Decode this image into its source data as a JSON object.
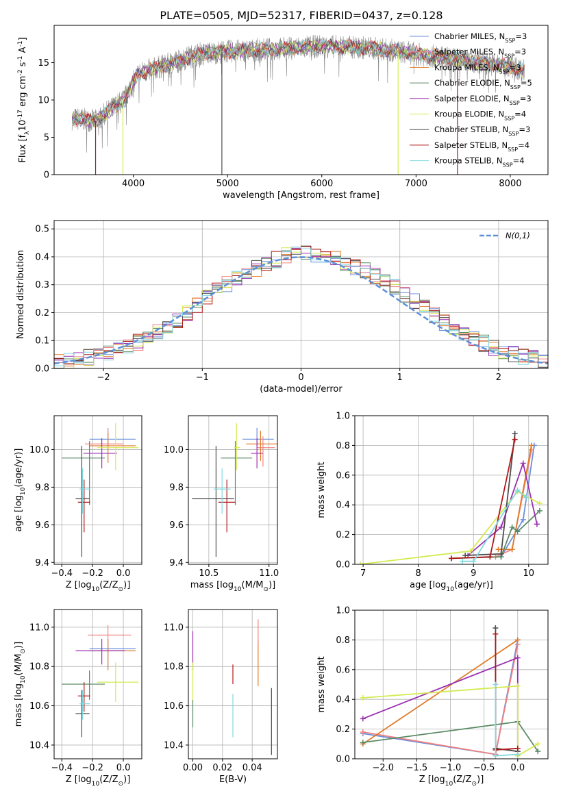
{
  "figure": {
    "title": "PLATE=0505, MJD=52317, FIBERID=0437, z=0.128"
  },
  "colors": {
    "chabrier_miles": "#6a8fdc",
    "salpeter_miles": "#f08080",
    "kroupa_miles": "#e07b28",
    "chabrier_elodie": "#5a8a64",
    "salpeter_elodie": "#9a2fb0",
    "kroupa_elodie": "#d4ea50",
    "chabrier_stelib": "#4d4d4d",
    "salpeter_stelib": "#b01818",
    "kroupa_stelib": "#80d8e0",
    "pink_point": "#e080c0",
    "normal": "#5b8fd8"
  },
  "legend_spectrum": [
    "Chabrier MILES, N$_{SSP}$=3",
    "Salpeter MILES, N$_{SSP}$=3",
    "Kroupa MILES, N$_{SSP}$=3",
    "Chabrier ELODIE, N$_{SSP}$=5",
    "Salpeter ELODIE, N$_{SSP}$=3",
    "Kroupa ELODIE, N$_{SSP}$=4",
    "Chabrier STELIB, N$_{SSP}$=3",
    "Salpeter STELIB, N$_{SSP}$=4",
    "Kroupa STELIB, N$_{SSP}$=4"
  ],
  "chart_data": [
    {
      "id": "spectrum",
      "type": "line",
      "xlabel": "wavelength [Angstrom, rest frame]",
      "ylabel": "Flux [f$_\\lambda$10$^{-17}$ erg cm$^{-2}$ s$^{-1}$ A$^{-1}$]",
      "xlim": [
        3160,
        8400
      ],
      "ylim": [
        0,
        20
      ],
      "xticks": [
        4000,
        5000,
        6000,
        7000,
        8000
      ],
      "yticks": [
        0,
        5,
        10,
        15
      ],
      "observed_continuum": {
        "x": [
          3350,
          3600,
          3900,
          4050,
          4300,
          4700,
          5000,
          5500,
          6000,
          6500,
          7000,
          7500,
          8000,
          8150
        ],
        "y": [
          7.5,
          7.2,
          10.0,
          13.5,
          14.5,
          16.2,
          16.5,
          16.8,
          17.2,
          17.0,
          16.2,
          15.3,
          14.5,
          14.0
        ]
      },
      "dropouts": [
        {
          "x": 3600,
          "y": 0,
          "series": "Salpeter STELIB"
        },
        {
          "x": 3890,
          "y": 0,
          "series": "Kroupa ELODIE"
        },
        {
          "x": 4940,
          "y": 0,
          "series": "Chabrier STELIB"
        },
        {
          "x": 6810,
          "y": 0,
          "series": "Kroupa ELODIE"
        },
        {
          "x": 7440,
          "y": 0,
          "series": "Salpeter STELIB"
        }
      ]
    },
    {
      "id": "residual_histogram",
      "type": "bar",
      "xlabel": "(data-model)/error",
      "ylabel": "Normed distribution",
      "xlim": [
        -2.5,
        2.5
      ],
      "ylim": [
        0,
        0.53
      ],
      "xticks": [
        -2,
        -1,
        0,
        1,
        2
      ],
      "yticks": [
        0.0,
        0.1,
        0.2,
        0.3,
        0.4,
        0.5
      ],
      "reference_curve": "$\\mathcal{N}(0,1)$",
      "bin_edges": [
        -2.5,
        -2.4,
        -2.3,
        -2.2,
        -2.1,
        -2.0,
        -1.9,
        -1.8,
        -1.7,
        -1.6,
        -1.5,
        -1.4,
        -1.3,
        -1.2,
        -1.1,
        -1.0,
        -0.9,
        -0.8,
        -0.7,
        -0.6,
        -0.5,
        -0.4,
        -0.3,
        -0.2,
        -0.1,
        0.0,
        0.1,
        0.2,
        0.3,
        0.4,
        0.5,
        0.6,
        0.7,
        0.8,
        0.9,
        1.0,
        1.1,
        1.2,
        1.3,
        1.4,
        1.5,
        1.6,
        1.7,
        1.8,
        1.9,
        2.0,
        2.1,
        2.2,
        2.3,
        2.4,
        2.5
      ],
      "mean_density": [
        0.025,
        0.03,
        0.035,
        0.04,
        0.045,
        0.055,
        0.065,
        0.08,
        0.095,
        0.11,
        0.13,
        0.15,
        0.175,
        0.2,
        0.23,
        0.255,
        0.28,
        0.3,
        0.32,
        0.34,
        0.36,
        0.38,
        0.39,
        0.405,
        0.41,
        0.42,
        0.41,
        0.4,
        0.39,
        0.38,
        0.365,
        0.35,
        0.33,
        0.31,
        0.29,
        0.265,
        0.24,
        0.215,
        0.19,
        0.165,
        0.145,
        0.125,
        0.105,
        0.09,
        0.075,
        0.06,
        0.05,
        0.04,
        0.035,
        0.03
      ]
    },
    {
      "id": "age_vs_Z",
      "type": "scatter",
      "xlabel": "Z [log$_{10}$(Z/Z$_\\odot$)]",
      "ylabel": "age  [log$_{10}$(age/yr)]",
      "xlim": [
        -0.45,
        0.12
      ],
      "ylim": [
        9.39,
        10.18
      ],
      "xticks": [
        -0.4,
        -0.2,
        0.0
      ],
      "yticks": [
        9.4,
        9.6,
        9.8,
        10.0
      ],
      "points": [
        {
          "series": "Chabrier MILES",
          "x": -0.1,
          "y": 10.055,
          "xerr": [
            0.12,
            0.18
          ],
          "yerr": [
            0.04,
            0.06
          ]
        },
        {
          "series": "Salpeter MILES",
          "x": -0.1,
          "y": 10.03,
          "xerr": [
            0.15,
            0.1
          ],
          "yerr": [
            0.1,
            0.08
          ]
        },
        {
          "series": "Kroupa MILES",
          "x": -0.1,
          "y": 10.02,
          "xerr": [
            0.12,
            0.18
          ],
          "yerr": [
            0.09,
            0.07
          ]
        },
        {
          "series": "Chabrier ELODIE",
          "x": -0.22,
          "y": 9.955,
          "xerr": [
            0.18,
            0.1
          ],
          "yerr": [
            0.25,
            0.09
          ]
        },
        {
          "series": "Salpeter ELODIE",
          "x": -0.14,
          "y": 9.98,
          "xerr": [
            0.12,
            0.1
          ],
          "yerr": [
            0.08,
            0.08
          ]
        },
        {
          "series": "Kroupa ELODIE",
          "x": -0.05,
          "y": 10.01,
          "xerr": [
            0.12,
            0.15
          ],
          "yerr": [
            0.12,
            0.13
          ]
        },
        {
          "series": "Chabrier STELIB",
          "x": -0.27,
          "y": 9.74,
          "xerr": [
            0.04,
            0.05
          ],
          "yerr": [
            0.31,
            0.28
          ]
        },
        {
          "series": "Salpeter STELIB",
          "x": -0.255,
          "y": 9.72,
          "xerr": [
            0.04,
            0.04
          ],
          "yerr": [
            0.16,
            0.12
          ]
        },
        {
          "series": "Kroupa STELIB",
          "x": -0.265,
          "y": 9.79,
          "xerr": [
            0.02,
            0.05
          ],
          "yerr": [
            0.13,
            0.11
          ]
        }
      ]
    },
    {
      "id": "age_vs_mass",
      "type": "scatter",
      "xlabel": "mass [log$_{10}$(M/M$_\\odot$)]",
      "ylabel": "",
      "xlim": [
        10.33,
        11.07
      ],
      "ylim": [
        9.39,
        10.18
      ],
      "xticks": [
        10.5,
        11.0
      ],
      "yticks": [
        9.4,
        9.6,
        9.8,
        10.0
      ],
      "points": [
        {
          "series": "Chabrier MILES",
          "x": 10.9,
          "y": 10.055,
          "xerr": [
            0.12,
            0.14
          ],
          "yerr": [
            0.04,
            0.06
          ]
        },
        {
          "series": "Salpeter MILES",
          "x": 10.95,
          "y": 10.01,
          "xerr": [
            0.05,
            0.1
          ],
          "yerr": [
            0.1,
            0.06
          ]
        },
        {
          "series": "Kroupa MILES",
          "x": 10.93,
          "y": 10.03,
          "xerr": [
            0.12,
            0.14
          ],
          "yerr": [
            0.09,
            0.07
          ]
        },
        {
          "series": "Chabrier ELODIE",
          "x": 10.72,
          "y": 9.955,
          "xerr": [
            0.12,
            0.14
          ],
          "yerr": [
            0.25,
            0.09
          ]
        },
        {
          "series": "Salpeter ELODIE",
          "x": 10.9,
          "y": 9.98,
          "xerr": [
            0.05,
            0.05
          ],
          "yerr": [
            0.08,
            0.08
          ]
        },
        {
          "series": "Kroupa ELODIE",
          "x": 10.73,
          "y": 10.01,
          "xerr": [
            0.02,
            0.03
          ],
          "yerr": [
            0.12,
            0.13
          ]
        },
        {
          "series": "Chabrier STELIB",
          "x": 10.56,
          "y": 9.74,
          "xerr": [
            0.2,
            0.15
          ],
          "yerr": [
            0.31,
            0.28
          ]
        },
        {
          "series": "Salpeter STELIB",
          "x": 10.65,
          "y": 9.72,
          "xerr": [
            0.07,
            0.07
          ],
          "yerr": [
            0.16,
            0.12
          ]
        },
        {
          "series": "Kroupa STELIB",
          "x": 10.61,
          "y": 9.79,
          "xerr": [
            0.07,
            0.07
          ],
          "yerr": [
            0.13,
            0.11
          ]
        }
      ]
    },
    {
      "id": "mass_weight_vs_age",
      "type": "line",
      "xlabel": "age  [log$_{10}$(age/yr)]",
      "ylabel": "mass weight",
      "xlim": [
        6.85,
        10.35
      ],
      "ylim": [
        0,
        1
      ],
      "xticks": [
        7,
        8,
        9,
        10
      ],
      "yticks": [
        0.0,
        0.2,
        0.4,
        0.6,
        0.8,
        1.0
      ],
      "series": [
        {
          "name": "Chabrier MILES",
          "x": [
            9.5,
            9.9,
            10.1
          ],
          "y": [
            0.05,
            0.3,
            0.8
          ]
        },
        {
          "name": "Salpeter MILES",
          "x": [
            9.4,
            9.7,
            10.05
          ],
          "y": [
            0.05,
            0.1,
            0.77
          ]
        },
        {
          "name": "Kroupa MILES",
          "x": [
            9.45,
            9.7,
            10.05
          ],
          "y": [
            0.1,
            0.1,
            0.8
          ]
        },
        {
          "name": "Chabrier ELODIE",
          "x": [
            8.6,
            9.5,
            9.7,
            9.8,
            10.2
          ],
          "y": [
            0.04,
            0.05,
            0.25,
            0.22,
            0.36
          ]
        },
        {
          "name": "Salpeter ELODIE",
          "x": [
            8.9,
            9.5,
            9.9,
            10.15
          ],
          "y": [
            0.06,
            0.25,
            0.68,
            0.27
          ]
        },
        {
          "name": "Kroupa ELODIE",
          "x": [
            6.95,
            8.95,
            9.8,
            10.2
          ],
          "y": [
            0.0,
            0.09,
            0.49,
            0.41
          ]
        },
        {
          "name": "Chabrier STELIB",
          "x": [
            8.85,
            9.5,
            9.75
          ],
          "y": [
            0.06,
            0.07,
            0.88
          ]
        },
        {
          "name": "Salpeter STELIB",
          "x": [
            8.6,
            9.3,
            9.75
          ],
          "y": [
            0.04,
            0.05,
            0.84
          ]
        },
        {
          "name": "Kroupa STELIB",
          "x": [
            8.8,
            9.0,
            9.8,
            9.95
          ],
          "y": [
            0.02,
            0.02,
            0.5,
            0.45
          ]
        }
      ]
    },
    {
      "id": "mass_vs_Z",
      "type": "scatter",
      "xlabel": "Z [log$_{10}$(Z/Z$_\\odot$)]",
      "ylabel": "mass [log$_{10}$(M/M$_\\odot$)]",
      "xlim": [
        -0.45,
        0.12
      ],
      "ylim": [
        10.33,
        11.09
      ],
      "xticks": [
        -0.4,
        -0.2,
        0.0
      ],
      "yticks": [
        10.4,
        10.6,
        10.8,
        11.0
      ],
      "points": [
        {
          "series": "Chabrier MILES",
          "x": -0.1,
          "y": 10.89,
          "xerr": [
            0.12,
            0.18
          ],
          "yerr": [
            0.1,
            0.05
          ]
        },
        {
          "series": "Salpeter MILES",
          "x": -0.1,
          "y": 10.96,
          "xerr": [
            0.13,
            0.15
          ],
          "yerr": [
            0.1,
            0.05
          ]
        },
        {
          "series": "Kroupa MILES",
          "x": -0.1,
          "y": 10.88,
          "xerr": [
            0.12,
            0.18
          ],
          "yerr": [
            0.1,
            0.06
          ]
        },
        {
          "series": "Chabrier ELODIE",
          "x": -0.22,
          "y": 10.71,
          "xerr": [
            0.18,
            0.1
          ],
          "yerr": [
            0.08,
            0.07
          ]
        },
        {
          "series": "Salpeter ELODIE",
          "x": -0.14,
          "y": 10.88,
          "xerr": [
            0.17,
            0.15
          ],
          "yerr": [
            0.07,
            0.06
          ]
        },
        {
          "series": "Kroupa ELODIE",
          "x": -0.05,
          "y": 10.72,
          "xerr": [
            0.12,
            0.15
          ],
          "yerr": [
            0.1,
            0.1
          ]
        },
        {
          "series": "Chabrier STELIB",
          "x": -0.27,
          "y": 10.56,
          "xerr": [
            0.04,
            0.05
          ],
          "yerr": [
            0.12,
            0.12
          ]
        },
        {
          "series": "Salpeter STELIB",
          "x": -0.255,
          "y": 10.65,
          "xerr": [
            0.04,
            0.04
          ],
          "yerr": [
            0.08,
            0.07
          ]
        },
        {
          "series": "Kroupa STELIB",
          "x": -0.265,
          "y": 10.61,
          "xerr": [
            0.02,
            0.05
          ],
          "yerr": [
            0.08,
            0.07
          ]
        }
      ]
    },
    {
      "id": "mass_vs_ebv",
      "type": "scatter",
      "xlabel": "E(B-V)",
      "ylabel": "",
      "xlim": [
        -0.003,
        0.057
      ],
      "ylim": [
        10.33,
        11.09
      ],
      "xticks": [
        0.0,
        0.02,
        0.04
      ],
      "yticks": [
        10.4,
        10.6,
        10.8,
        11.0
      ],
      "points": [
        {
          "series": "Salpeter ELODIE",
          "x": 0.0,
          "y": 10.88,
          "yerr": [
            0.1,
            0.1
          ]
        },
        {
          "series": "Kroupa ELODIE",
          "x": 0.0,
          "y": 10.72,
          "yerr": [
            0.1,
            0.1
          ]
        },
        {
          "series": "Chabrier ELODIE",
          "x": 0.0,
          "y": 10.56,
          "yerr": [
            0.07,
            0.07
          ]
        },
        {
          "series": "Salpeter STELIB",
          "x": 0.027,
          "y": 10.76,
          "yerr": [
            0.05,
            0.05
          ]
        },
        {
          "series": "Kroupa STELIB",
          "x": 0.027,
          "y": 10.56,
          "yerr": [
            0.12,
            0.1
          ]
        },
        {
          "series": "Kroupa MILES",
          "x": 0.044,
          "y": 10.82,
          "yerr": [
            0.12,
            0.11
          ]
        },
        {
          "series": "Salpeter MILES",
          "x": 0.044,
          "y": 10.96,
          "yerr": [
            0.05,
            0.08
          ]
        },
        {
          "series": "Chabrier STELIB",
          "x": 0.053,
          "y": 10.52,
          "yerr": [
            0.17,
            0.17
          ]
        }
      ]
    },
    {
      "id": "mass_weight_vs_Z",
      "type": "line",
      "xlabel": "Z [log$_{10}$(Z/Z$_\\odot$)]",
      "ylabel": "mass weight",
      "xlim": [
        -2.42,
        0.45
      ],
      "ylim": [
        0,
        1
      ],
      "xticks": [
        -2.0,
        -1.5,
        -1.0,
        -0.5,
        0.0
      ],
      "yticks": [
        0.0,
        0.2,
        0.4,
        0.6,
        0.8,
        1.0
      ],
      "series": [
        {
          "name": "Chabrier MILES",
          "x": [
            -2.3,
            -0.33,
            0.0
          ],
          "y": [
            0.17,
            0.03,
            0.8
          ]
        },
        {
          "name": "Salpeter MILES",
          "x": [
            -2.3,
            -0.33,
            0.0
          ],
          "y": [
            0.18,
            0.03,
            0.77
          ]
        },
        {
          "name": "Kroupa MILES",
          "x": [
            -2.3,
            0.0
          ],
          "y": [
            0.1,
            0.8
          ]
        },
        {
          "name": "Chabrier ELODIE",
          "x": [
            -2.3,
            0.0,
            0.3
          ],
          "y": [
            0.11,
            0.25,
            0.05
          ]
        },
        {
          "name": "Salpeter ELODIE",
          "x": [
            -2.3,
            0.0,
            0.0
          ],
          "y": [
            0.27,
            0.68,
            0.05
          ]
        },
        {
          "name": "Kroupa ELODIE",
          "x": [
            -2.3,
            0.0,
            0.0,
            0.3
          ],
          "y": [
            0.41,
            0.49,
            0.02,
            0.1
          ]
        },
        {
          "name": "Chabrier STELIB",
          "x": [
            -0.33,
            -0.33,
            0.0
          ],
          "y": [
            0.88,
            0.07,
            0.05
          ]
        },
        {
          "name": "Salpeter STELIB",
          "x": [
            -0.33,
            -0.33,
            0.0
          ],
          "y": [
            0.84,
            0.06,
            0.07
          ]
        },
        {
          "name": "Kroupa STELIB",
          "x": [
            -0.33,
            -0.33,
            0.0
          ],
          "y": [
            0.5,
            0.02,
            0.03
          ]
        }
      ]
    }
  ]
}
